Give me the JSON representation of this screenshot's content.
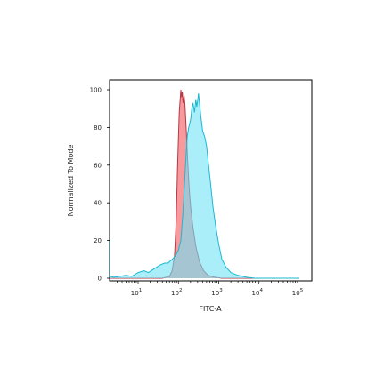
{
  "chart_data": {
    "type": "area",
    "title": "",
    "xlabel": "FITC-A",
    "ylabel": "Normalized To Mode",
    "x_scale": "log",
    "xlim": [
      1,
      100000
    ],
    "ylim": [
      0,
      100
    ],
    "grid": false,
    "legend": "none",
    "x_ticks": [
      {
        "value": 10,
        "base": "10",
        "exp": "1"
      },
      {
        "value": 100,
        "base": "10",
        "exp": "2"
      },
      {
        "value": 1000,
        "base": "10",
        "exp": "3"
      },
      {
        "value": 10000,
        "base": "10",
        "exp": "4"
      },
      {
        "value": 100000,
        "base": "10",
        "exp": "5"
      }
    ],
    "y_ticks": [
      "0",
      "20",
      "40",
      "60",
      "80",
      "100"
    ],
    "series": [
      {
        "color_fill": "#f7888c",
        "color_line": "#b53845",
        "points": [
          [
            1.2,
            0
          ],
          [
            40,
            0
          ],
          [
            60,
            1
          ],
          [
            70,
            4
          ],
          [
            80,
            12
          ],
          [
            88,
            30
          ],
          [
            95,
            58
          ],
          [
            100,
            75
          ],
          [
            105,
            88
          ],
          [
            110,
            94
          ],
          [
            115,
            100
          ],
          [
            120,
            96
          ],
          [
            125,
            99
          ],
          [
            130,
            93
          ],
          [
            138,
            97
          ],
          [
            145,
            92
          ],
          [
            155,
            80
          ],
          [
            170,
            62
          ],
          [
            185,
            48
          ],
          [
            200,
            38
          ],
          [
            230,
            27
          ],
          [
            270,
            17
          ],
          [
            330,
            9
          ],
          [
            420,
            4
          ],
          [
            550,
            1.5
          ],
          [
            800,
            0.5
          ],
          [
            1200,
            0
          ],
          [
            100000,
            0
          ]
        ]
      },
      {
        "color_fill": "#6fe3f5",
        "color_line": "#1ab8d2",
        "points": [
          [
            1.2,
            20
          ],
          [
            1.3,
            12
          ],
          [
            1.5,
            4
          ],
          [
            1.8,
            1
          ],
          [
            2.5,
            0.5
          ],
          [
            5,
            1.5
          ],
          [
            7,
            1
          ],
          [
            10,
            3
          ],
          [
            14,
            4
          ],
          [
            18,
            3
          ],
          [
            25,
            5
          ],
          [
            35,
            7
          ],
          [
            45,
            8
          ],
          [
            55,
            8
          ],
          [
            70,
            10
          ],
          [
            85,
            12
          ],
          [
            100,
            15
          ],
          [
            115,
            20
          ],
          [
            130,
            35
          ],
          [
            150,
            60
          ],
          [
            165,
            75
          ],
          [
            180,
            80
          ],
          [
            200,
            84
          ],
          [
            215,
            90
          ],
          [
            230,
            93
          ],
          [
            250,
            88
          ],
          [
            270,
            95
          ],
          [
            285,
            91
          ],
          [
            300,
            94
          ],
          [
            315,
            98
          ],
          [
            330,
            94
          ],
          [
            360,
            86
          ],
          [
            400,
            78
          ],
          [
            450,
            75
          ],
          [
            500,
            70
          ],
          [
            560,
            60
          ],
          [
            630,
            50
          ],
          [
            720,
            38
          ],
          [
            850,
            27
          ],
          [
            1000,
            18
          ],
          [
            1200,
            10
          ],
          [
            1500,
            6
          ],
          [
            2000,
            3
          ],
          [
            3000,
            1.5
          ],
          [
            5000,
            0.5
          ],
          [
            8000,
            0
          ],
          [
            100000,
            0
          ]
        ]
      }
    ]
  }
}
